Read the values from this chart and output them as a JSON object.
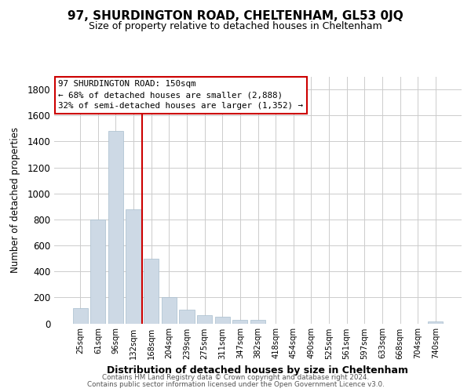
{
  "title": "97, SHURDINGTON ROAD, CHELTENHAM, GL53 0JQ",
  "subtitle": "Size of property relative to detached houses in Cheltenham",
  "xlabel": "Distribution of detached houses by size in Cheltenham",
  "ylabel": "Number of detached properties",
  "bar_labels": [
    "25sqm",
    "61sqm",
    "96sqm",
    "132sqm",
    "168sqm",
    "204sqm",
    "239sqm",
    "275sqm",
    "311sqm",
    "347sqm",
    "382sqm",
    "418sqm",
    "454sqm",
    "490sqm",
    "525sqm",
    "561sqm",
    "597sqm",
    "633sqm",
    "668sqm",
    "704sqm",
    "740sqm"
  ],
  "bar_values": [
    120,
    800,
    1480,
    880,
    495,
    205,
    105,
    65,
    50,
    30,
    25,
    0,
    0,
    0,
    0,
    0,
    0,
    0,
    0,
    0,
    15
  ],
  "bar_color": "#cdd9e5",
  "bar_edge_color": "#a8bece",
  "vline_color": "#cc0000",
  "vline_pos": 3.5,
  "ylim": [
    0,
    1900
  ],
  "yticks": [
    0,
    200,
    400,
    600,
    800,
    1000,
    1200,
    1400,
    1600,
    1800
  ],
  "annotation_line1": "97 SHURDINGTON ROAD: 150sqm",
  "annotation_line2": "← 68% of detached houses are smaller (2,888)",
  "annotation_line3": "32% of semi-detached houses are larger (1,352) →",
  "annotation_box_color": "#ffffff",
  "annotation_box_edge": "#cc0000",
  "footer1": "Contains HM Land Registry data © Crown copyright and database right 2024.",
  "footer2": "Contains public sector information licensed under the Open Government Licence v3.0.",
  "bg_color": "#ffffff",
  "grid_color": "#cccccc",
  "title_fontsize": 11,
  "subtitle_fontsize": 9
}
